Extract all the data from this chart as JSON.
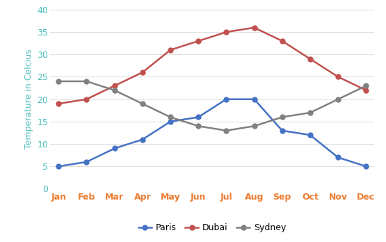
{
  "months": [
    "Jan",
    "Feb",
    "Mar",
    "Apr",
    "May",
    "Jun",
    "Jul",
    "Aug",
    "Sep",
    "Oct",
    "Nov",
    "Dec"
  ],
  "paris": [
    5,
    6,
    9,
    11,
    15,
    16,
    20,
    20,
    13,
    12,
    7,
    5
  ],
  "dubai": [
    19,
    20,
    23,
    26,
    31,
    33,
    35,
    36,
    33,
    29,
    25,
    22
  ],
  "sydney": [
    24,
    24,
    22,
    19,
    16,
    14,
    13,
    14,
    16,
    17,
    20,
    23
  ],
  "paris_color": "#4472C4",
  "dubai_color": "#C0504D",
  "sydney_color": "#808080",
  "xticklabel_color": "#ED7D31",
  "yticklabel_color": "#4DBFBF",
  "ylabel_color": "#4DBFBF",
  "ylabel": "Temperature in Celcius",
  "ylim": [
    0,
    40
  ],
  "yticks": [
    0,
    5,
    10,
    15,
    20,
    25,
    30,
    35,
    40
  ],
  "grid_color": "#E0E0E0",
  "background_color": "#FFFFFF",
  "legend_labels": [
    "Paris",
    "Dubai",
    "Sydney"
  ],
  "marker": "o",
  "linewidth": 1.8,
  "markersize": 5,
  "fontsize": 9
}
